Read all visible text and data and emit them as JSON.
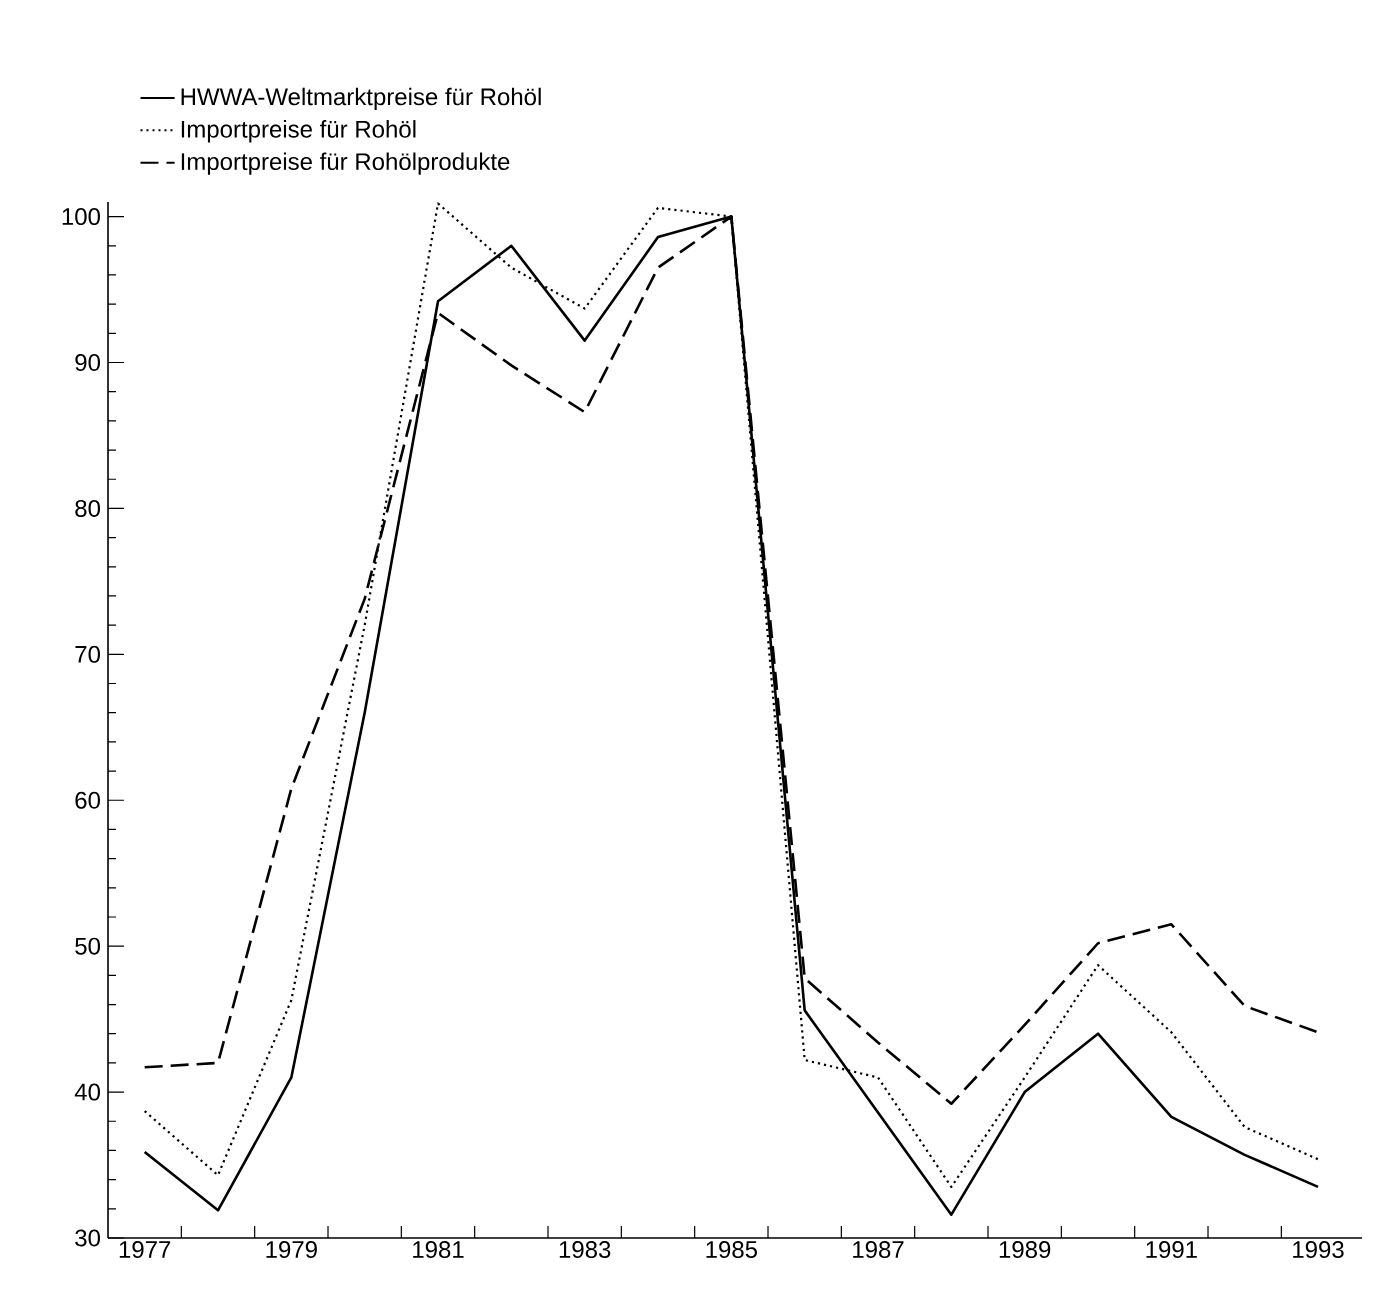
{
  "chart_data": {
    "type": "line",
    "x": [
      1977,
      1978,
      1979,
      1980,
      1981,
      1982,
      1983,
      1984,
      1985,
      1986,
      1987,
      1988,
      1989,
      1990,
      1991,
      1992,
      1993
    ],
    "series": [
      {
        "name": "HWWA-Weltmarktpreise für Rohöl",
        "color": "#000000",
        "line_style": "solid",
        "values": [
          35.9,
          31.9,
          41.0,
          66,
          94.2,
          98.0,
          91.5,
          98.6,
          100,
          45.6,
          38.6,
          31.6,
          40.0,
          44.0,
          38.3,
          35.7,
          33.5
        ]
      },
      {
        "name": "Importpreise für Rohöl",
        "color": "#000000",
        "line_style": "dotted",
        "values": [
          38.7,
          34.3,
          46.3,
          72,
          100.9,
          96.5,
          93.7,
          100.6,
          100,
          42.2,
          41.0,
          33.5,
          41.0,
          48.7,
          44.1,
          37.6,
          35.4
        ]
      },
      {
        "name": "Importpreise für Rohölprodukte",
        "color": "#000000",
        "line_style": "dashed",
        "values": [
          41.7,
          42.0,
          60.8,
          73.8,
          93.4,
          89.8,
          86.6,
          96.5,
          100,
          47.8,
          43.4,
          39.2,
          44.6,
          50.2,
          51.5,
          45.9,
          44.1
        ]
      }
    ],
    "xlim": [
      1976.5,
      1993.6
    ],
    "xticks": [
      {
        "value": 1977,
        "label": "1977"
      },
      {
        "value": 1977.5,
        "label": null
      },
      {
        "value": 1978.5,
        "label": null
      },
      {
        "value": 1979,
        "label": "1979"
      },
      {
        "value": 1979.5,
        "label": null
      },
      {
        "value": 1980.5,
        "label": null
      },
      {
        "value": 1981,
        "label": "1981"
      },
      {
        "value": 1981.5,
        "label": null
      },
      {
        "value": 1982.5,
        "label": null
      },
      {
        "value": 1983,
        "label": "1983"
      },
      {
        "value": 1983.5,
        "label": null
      },
      {
        "value": 1984.5,
        "label": null
      },
      {
        "value": 1985,
        "label": "1985"
      },
      {
        "value": 1985.5,
        "label": null
      },
      {
        "value": 1986.5,
        "label": null
      },
      {
        "value": 1987,
        "label": "1987"
      },
      {
        "value": 1987.5,
        "label": null
      },
      {
        "value": 1988.5,
        "label": null
      },
      {
        "value": 1989,
        "label": "1989"
      },
      {
        "value": 1989.5,
        "label": null
      },
      {
        "value": 1990.5,
        "label": null
      },
      {
        "value": 1991,
        "label": "1991"
      },
      {
        "value": 1991.5,
        "label": null
      },
      {
        "value": 1992.5,
        "label": null
      },
      {
        "value": 1993,
        "label": "1993"
      }
    ],
    "ylim": [
      30,
      101
    ],
    "yticks": [
      30,
      {
        "value": 32,
        "label": null
      },
      {
        "value": 34,
        "label": null
      },
      {
        "value": 36,
        "label": null
      },
      {
        "value": 38,
        "label": null
      },
      40,
      {
        "value": 42,
        "label": null
      },
      {
        "value": 44,
        "label": null
      },
      {
        "value": 46,
        "label": null
      },
      {
        "value": 48,
        "label": null
      },
      50,
      {
        "value": 52,
        "label": null
      },
      {
        "value": 54,
        "label": null
      },
      {
        "value": 56,
        "label": null
      },
      {
        "value": 58,
        "label": null
      },
      60,
      {
        "value": 62,
        "label": null
      },
      {
        "value": 64,
        "label": null
      },
      {
        "value": 66,
        "label": null
      },
      {
        "value": 68,
        "label": null
      },
      70,
      {
        "value": 72,
        "label": null
      },
      {
        "value": 74,
        "label": null
      },
      {
        "value": 76,
        "label": null
      },
      {
        "value": 78,
        "label": null
      },
      80,
      {
        "value": 82,
        "label": null
      },
      {
        "value": 84,
        "label": null
      },
      {
        "value": 86,
        "label": null
      },
      {
        "value": 88,
        "label": null
      },
      90,
      {
        "value": 92,
        "label": null
      },
      {
        "value": 94,
        "label": null
      },
      {
        "value": 96,
        "label": null
      },
      {
        "value": 98,
        "label": null
      },
      100
    ],
    "legend": "top left"
  }
}
